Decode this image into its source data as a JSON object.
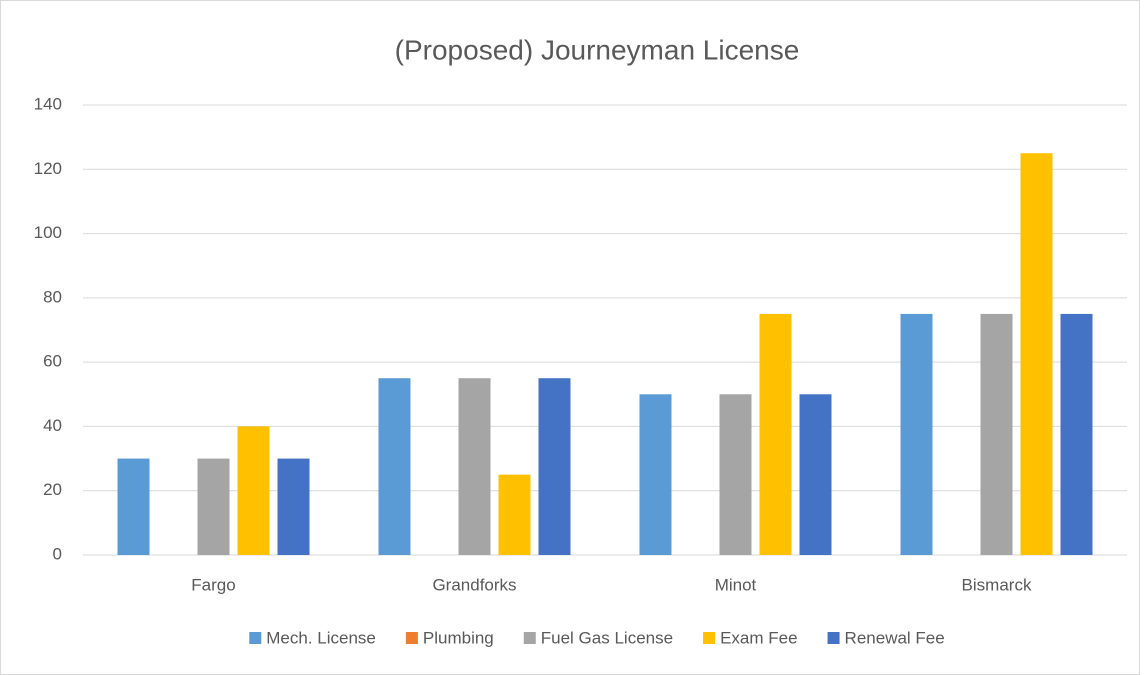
{
  "chart_data": {
    "type": "bar",
    "title": "(Proposed) Journeyman License",
    "categories": [
      "Fargo",
      "Grandforks",
      "Minot",
      "Bismarck"
    ],
    "series": [
      {
        "name": "Mech. License",
        "color": "#5b9bd5",
        "values": [
          30,
          55,
          50,
          75
        ]
      },
      {
        "name": "Plumbing",
        "color": "#ed7d31",
        "values": [
          0,
          0,
          0,
          0
        ]
      },
      {
        "name": "Fuel Gas License",
        "color": "#a5a5a5",
        "values": [
          30,
          55,
          50,
          75
        ]
      },
      {
        "name": "Exam Fee",
        "color": "#ffc000",
        "values": [
          40,
          25,
          75,
          125
        ]
      },
      {
        "name": "Renewal Fee",
        "color": "#4472c4",
        "values": [
          30,
          55,
          50,
          75
        ]
      }
    ],
    "ylim": [
      0,
      140
    ],
    "yticks": [
      0,
      20,
      40,
      60,
      80,
      100,
      120,
      140
    ],
    "grid": true,
    "legend": "bottom"
  }
}
